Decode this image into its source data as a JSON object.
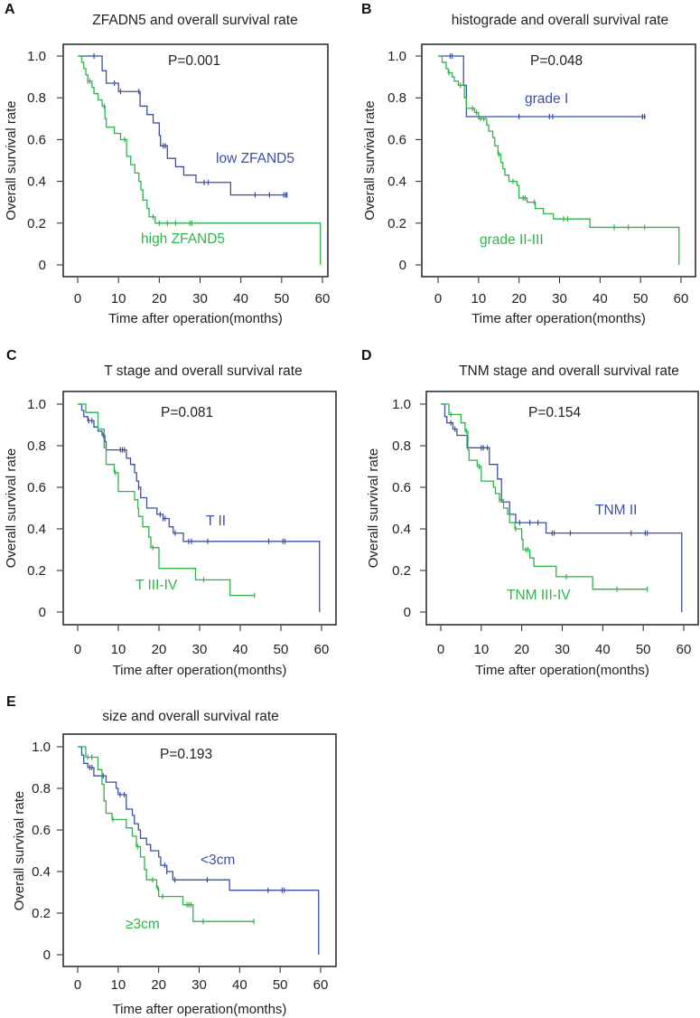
{
  "colors": {
    "blue": "#3b4fa8",
    "green": "#2eb34a",
    "axis": "#222222"
  },
  "chart_data": [
    {
      "type": "line",
      "letter": "A",
      "title": "ZFADN5 and overall survival rate",
      "p_value": "P=0.001",
      "xlabel": "Time after operation(months)",
      "ylabel": "Overall survival rate",
      "xlim": [
        0,
        60
      ],
      "ylim": [
        0,
        1
      ],
      "xticks": [
        "0",
        "10",
        "20",
        "30",
        "40",
        "50",
        "60"
      ],
      "yticks": [
        "0",
        "0.2",
        "0.4",
        "0.6",
        "0.8",
        "1.0"
      ],
      "series": [
        {
          "name": "low ZFAND5",
          "color": "#3b4fa8",
          "steps": [
            [
              6,
              0.93
            ],
            [
              7,
              0.87
            ],
            [
              10,
              0.83
            ],
            [
              15.3,
              0.76
            ],
            [
              17,
              0.72
            ],
            [
              18.5,
              0.68
            ],
            [
              20,
              0.62
            ],
            [
              20.3,
              0.57
            ],
            [
              22,
              0.51
            ],
            [
              24,
              0.47
            ],
            [
              26,
              0.43
            ],
            [
              29,
              0.395
            ],
            [
              37.5,
              0.335
            ]
          ],
          "censored": [
            4,
            9,
            10.5,
            15,
            21,
            21.5,
            31,
            32,
            43.5,
            47,
            50.5,
            51,
            51.3
          ],
          "end": 51.3
        },
        {
          "name": "high ZFAND5",
          "color": "#2eb34a",
          "steps": [
            [
              1,
              0.97
            ],
            [
              1.5,
              0.94
            ],
            [
              2,
              0.91
            ],
            [
              2.5,
              0.88
            ],
            [
              3.5,
              0.85
            ],
            [
              4,
              0.82
            ],
            [
              5,
              0.79
            ],
            [
              6,
              0.76
            ],
            [
              6.7,
              0.7
            ],
            [
              7,
              0.66
            ],
            [
              9,
              0.63
            ],
            [
              10.5,
              0.6
            ],
            [
              12,
              0.52
            ],
            [
              13,
              0.48
            ],
            [
              14,
              0.44
            ],
            [
              15,
              0.4
            ],
            [
              15.5,
              0.36
            ],
            [
              16,
              0.31
            ],
            [
              17,
              0.27
            ],
            [
              17.5,
              0.23
            ],
            [
              19,
              0.2
            ],
            [
              59.5,
              0
            ]
          ],
          "censored": [
            2.5,
            3,
            6.5,
            11.5,
            18.5,
            20,
            22,
            24,
            27.5,
            28
          ],
          "end": 59.5
        }
      ]
    },
    {
      "type": "line",
      "letter": "B",
      "title": "histograde and overall survival rate",
      "p_value": "P=0.048",
      "xlabel": "Time after operation(months)",
      "ylabel": "Overall survival rate",
      "xlim": [
        0,
        60
      ],
      "ylim": [
        0,
        1
      ],
      "xticks": [
        "0",
        "10",
        "20",
        "30",
        "40",
        "50",
        "60"
      ],
      "yticks": [
        "0",
        "0.2",
        "0.4",
        "0.6",
        "0.8",
        "1.0"
      ],
      "series": [
        {
          "name": "grade I",
          "color": "#3b4fa8",
          "steps": [
            [
              6.3,
              0.86
            ],
            [
              7,
              0.71
            ]
          ],
          "censored": [
            3,
            3.5,
            20,
            27.5,
            28.3,
            50.5,
            51
          ],
          "end": 51.3
        },
        {
          "name": "grade II-III",
          "color": "#2eb34a",
          "steps": [
            [
              1,
              0.97
            ],
            [
              2,
              0.94
            ],
            [
              2.5,
              0.92
            ],
            [
              3.5,
              0.9
            ],
            [
              4,
              0.88
            ],
            [
              5,
              0.86
            ],
            [
              6.5,
              0.8
            ],
            [
              7,
              0.75
            ],
            [
              9,
              0.73
            ],
            [
              10,
              0.7
            ],
            [
              12,
              0.67
            ],
            [
              12.5,
              0.64
            ],
            [
              13.5,
              0.61
            ],
            [
              14,
              0.57
            ],
            [
              14.8,
              0.53
            ],
            [
              15.5,
              0.49
            ],
            [
              16,
              0.46
            ],
            [
              16.5,
              0.43
            ],
            [
              17.5,
              0.4
            ],
            [
              19.5,
              0.38
            ],
            [
              20,
              0.32
            ],
            [
              22,
              0.3
            ],
            [
              24,
              0.27
            ],
            [
              26,
              0.245
            ],
            [
              28.5,
              0.22
            ],
            [
              37.5,
              0.18
            ],
            [
              59.5,
              0
            ]
          ],
          "censored": [
            2.7,
            5.5,
            8.5,
            9.5,
            10.5,
            11.3,
            15,
            18.5,
            21,
            21.5,
            23.8,
            31,
            32,
            43.5,
            47,
            51
          ],
          "end": 59.5
        }
      ]
    },
    {
      "type": "line",
      "letter": "C",
      "title": "T stage and overall survival rate",
      "p_value": "P=0.081",
      "xlabel": "Time after operation(months)",
      "ylabel": "Overall survival rate",
      "xlim": [
        0,
        60
      ],
      "ylim": [
        0,
        1
      ],
      "xticks": [
        "0",
        "10",
        "20",
        "30",
        "40",
        "50",
        "60"
      ],
      "yticks": [
        "0",
        "0.2",
        "0.4",
        "0.6",
        "0.8",
        "1.0"
      ],
      "series": [
        {
          "name": "T II",
          "color": "#3b4fa8",
          "steps": [
            [
              1,
              0.97
            ],
            [
              1.5,
              0.94
            ],
            [
              2.5,
              0.92
            ],
            [
              4,
              0.89
            ],
            [
              5,
              0.87
            ],
            [
              6,
              0.85
            ],
            [
              6.7,
              0.82
            ],
            [
              7,
              0.78
            ],
            [
              12,
              0.74
            ],
            [
              13,
              0.71
            ],
            [
              14,
              0.67
            ],
            [
              14.5,
              0.63
            ],
            [
              15,
              0.6
            ],
            [
              15.5,
              0.55
            ],
            [
              17,
              0.5
            ],
            [
              19.5,
              0.47
            ],
            [
              21,
              0.45
            ],
            [
              22.5,
              0.41
            ],
            [
              23.5,
              0.38
            ],
            [
              26,
              0.34
            ],
            [
              59.5,
              0
            ]
          ],
          "censored": [
            2.7,
            3.5,
            6.3,
            10.5,
            11,
            11.5,
            15,
            20.3,
            21,
            21.5,
            24,
            27.3,
            28,
            32,
            47,
            50.5,
            51
          ],
          "end": 59.5
        },
        {
          "name": "T III-IV",
          "color": "#2eb34a",
          "steps": [
            [
              2,
              0.96
            ],
            [
              5,
              0.88
            ],
            [
              6.5,
              0.79
            ],
            [
              7,
              0.71
            ],
            [
              9,
              0.67
            ],
            [
              10,
              0.58
            ],
            [
              14,
              0.54
            ],
            [
              14.8,
              0.5
            ],
            [
              15,
              0.46
            ],
            [
              16,
              0.41
            ],
            [
              17.5,
              0.36
            ],
            [
              18,
              0.31
            ],
            [
              20,
              0.21
            ],
            [
              29,
              0.155
            ],
            [
              37.5,
              0.08
            ]
          ],
          "censored": [
            9.3,
            18.5,
            31,
            43.5
          ],
          "end": 43.5
        }
      ]
    },
    {
      "type": "line",
      "letter": "D",
      "title": "TNM stage and overall survival rate",
      "p_value": "P=0.154",
      "xlabel": "Time after operation(months)",
      "ylabel": "Overall survival rate",
      "xlim": [
        0,
        60
      ],
      "ylim": [
        0,
        1
      ],
      "xticks": [
        "0",
        "10",
        "20",
        "30",
        "40",
        "50",
        "60"
      ],
      "yticks": [
        "0",
        "0.2",
        "0.4",
        "0.6",
        "0.8",
        "1.0"
      ],
      "series": [
        {
          "name": "TNM  II",
          "color": "#3b4fa8",
          "steps": [
            [
              1,
              0.94
            ],
            [
              1.5,
              0.91
            ],
            [
              3,
              0.88
            ],
            [
              4,
              0.85
            ],
            [
              6.5,
              0.79
            ],
            [
              12,
              0.71
            ],
            [
              14,
              0.64
            ],
            [
              15,
              0.53
            ],
            [
              17,
              0.47
            ],
            [
              18.5,
              0.43
            ],
            [
              26,
              0.38
            ],
            [
              59.5,
              0
            ]
          ],
          "censored": [
            2.5,
            3.5,
            10,
            10.5,
            11.5,
            19.5,
            22,
            24,
            27.5,
            28,
            32,
            47,
            50.5,
            51
          ],
          "end": 59.5
        },
        {
          "name": "TNM III-IV",
          "color": "#2eb34a",
          "steps": [
            [
              2,
              0.95
            ],
            [
              5,
              0.91
            ],
            [
              6,
              0.87
            ],
            [
              6.7,
              0.78
            ],
            [
              7,
              0.73
            ],
            [
              9,
              0.7
            ],
            [
              10,
              0.63
            ],
            [
              13,
              0.6
            ],
            [
              13.5,
              0.57
            ],
            [
              14.5,
              0.54
            ],
            [
              15.5,
              0.5
            ],
            [
              16.5,
              0.47
            ],
            [
              17,
              0.43
            ],
            [
              18.3,
              0.4
            ],
            [
              20,
              0.35
            ],
            [
              20.3,
              0.3
            ],
            [
              22,
              0.26
            ],
            [
              23,
              0.22
            ],
            [
              28.5,
              0.17
            ],
            [
              37.5,
              0.11
            ]
          ],
          "censored": [
            2.5,
            6.3,
            9.5,
            14.5,
            18.5,
            21,
            21.5,
            31,
            43.5,
            51
          ],
          "end": 51
        }
      ]
    },
    {
      "type": "line",
      "letter": "E",
      "title": "size and overall survival rate",
      "p_value": "P=0.193",
      "xlabel": "Time after operation(months)",
      "ylabel": "Overall survival rate",
      "xlim": [
        0,
        60
      ],
      "ylim": [
        0,
        1
      ],
      "xticks": [
        "0",
        "10",
        "20",
        "30",
        "40",
        "50",
        "60"
      ],
      "yticks": [
        "0",
        "0.2",
        "0.4",
        "0.6",
        "0.8",
        "1.0"
      ],
      "series": [
        {
          "name": "<3cm",
          "color": "#3b4fa8",
          "steps": [
            [
              1,
              0.96
            ],
            [
              1.5,
              0.92
            ],
            [
              2.5,
              0.9
            ],
            [
              4,
              0.86
            ],
            [
              7,
              0.83
            ],
            [
              9.5,
              0.8
            ],
            [
              10,
              0.77
            ],
            [
              12,
              0.7
            ],
            [
              13.5,
              0.67
            ],
            [
              14,
              0.63
            ],
            [
              15,
              0.6
            ],
            [
              15.5,
              0.56
            ],
            [
              17,
              0.53
            ],
            [
              18,
              0.5
            ],
            [
              20,
              0.47
            ],
            [
              20.5,
              0.43
            ],
            [
              22,
              0.4
            ],
            [
              23.5,
              0.36
            ],
            [
              37.5,
              0.31
            ],
            [
              59.5,
              0
            ]
          ],
          "censored": [
            3,
            3.5,
            6.3,
            10.5,
            11.5,
            21.5,
            22,
            24,
            32,
            47,
            50.5,
            51
          ],
          "end": 59.5
        },
        {
          "name": "≥3cm",
          "color": "#2eb34a",
          "steps": [
            [
              2,
              0.95
            ],
            [
              5,
              0.89
            ],
            [
              6,
              0.82
            ],
            [
              6.5,
              0.74
            ],
            [
              7,
              0.68
            ],
            [
              8.5,
              0.65
            ],
            [
              12,
              0.61
            ],
            [
              13.5,
              0.57
            ],
            [
              14.5,
              0.52
            ],
            [
              15.5,
              0.47
            ],
            [
              16.5,
              0.41
            ],
            [
              17,
              0.36
            ],
            [
              19.5,
              0.32
            ],
            [
              20,
              0.28
            ],
            [
              26,
              0.24
            ],
            [
              28.5,
              0.16
            ]
          ],
          "censored": [
            2.5,
            3.5,
            8.7,
            14.8,
            18.5,
            19.8,
            21,
            27,
            27.5,
            28,
            31,
            43.5
          ],
          "end": 43.5
        }
      ]
    }
  ]
}
